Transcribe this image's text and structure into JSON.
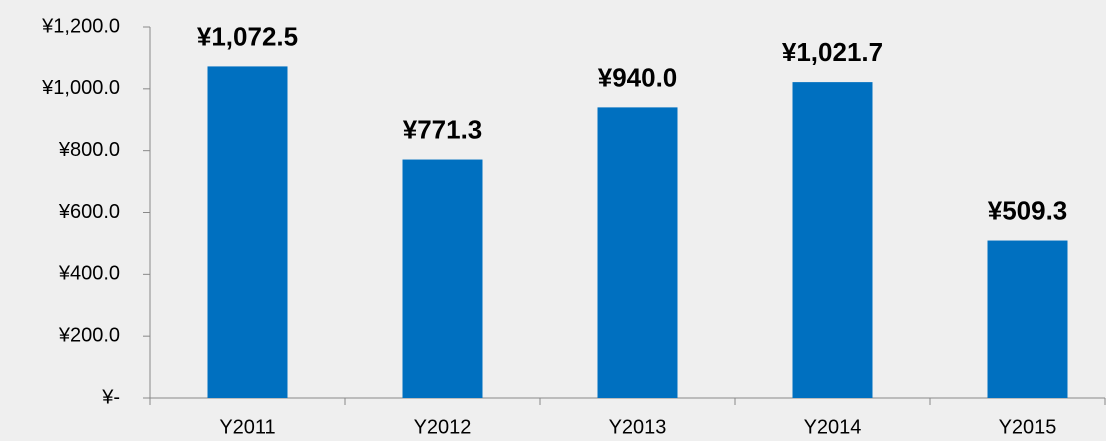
{
  "chart_data": {
    "type": "bar",
    "categories": [
      "Y2011",
      "Y2012",
      "Y2013",
      "Y2014",
      "Y2015"
    ],
    "values": [
      1072.5,
      771.3,
      940.0,
      1021.7,
      509.3
    ],
    "value_labels": [
      "¥1,072.5",
      "¥771.3",
      "¥940.0",
      "¥1,021.7",
      "¥509.3"
    ],
    "color": "#0070c0",
    "ylim": [
      0,
      1200
    ],
    "yticks": [
      {
        "value": 0,
        "label": "¥-"
      },
      {
        "value": 200,
        "label": "¥200.0"
      },
      {
        "value": 400,
        "label": "¥400.0"
      },
      {
        "value": 600,
        "label": "¥600.0"
      },
      {
        "value": 800,
        "label": "¥800.0"
      },
      {
        "value": 1000,
        "label": "¥1,000.0"
      },
      {
        "value": 1200,
        "label": "¥1,200.0"
      }
    ],
    "grid": false
  }
}
